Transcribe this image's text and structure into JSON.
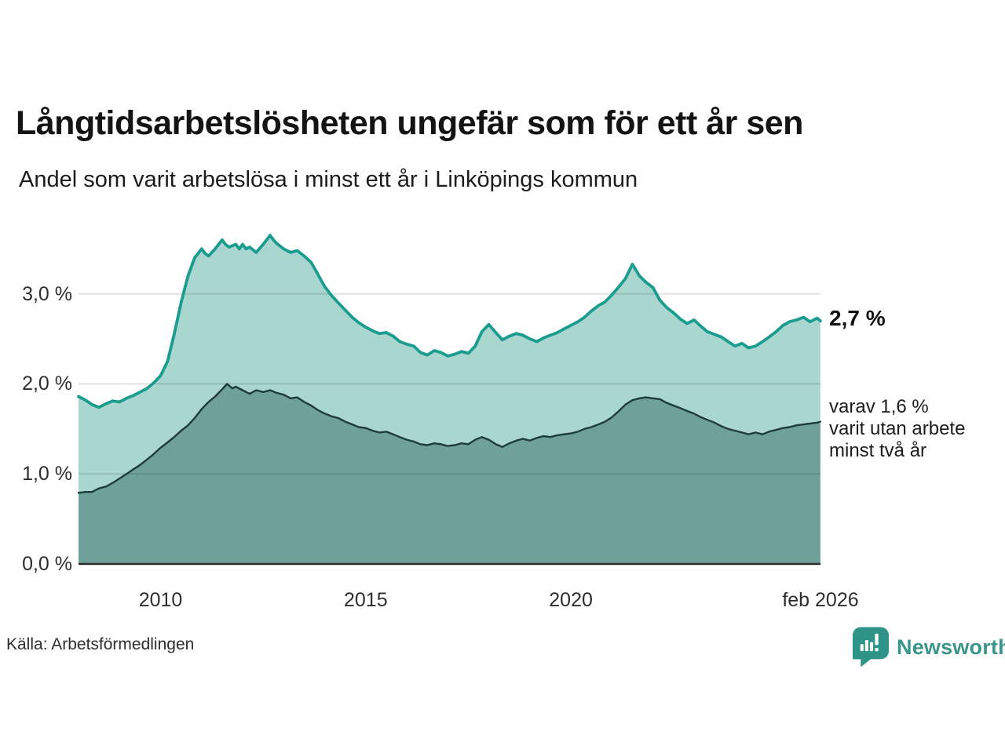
{
  "header": {
    "title": "Långtidsarbetslösheten ungefär som för ett år sen",
    "subtitle": "Andel som varit arbetslösa i minst ett år i Linköpings kommun"
  },
  "footer": {
    "source": "Källa: Arbetsförmedlingen",
    "brand": "Newsworthy"
  },
  "colors": {
    "line_one_year": "#1a9c8e",
    "fill_one_year": "#a9d6cf",
    "line_two_years": "#1e3c38",
    "fill_two_years": "#6fa09a",
    "axis": "#2b2b2b",
    "brand_teal": "#2d9487"
  },
  "chart_data": {
    "type": "area",
    "title": "Långtidsarbetslösheten ungefär som för ett år sen",
    "subtitle": "Andel som varit arbetslösa i minst ett år i Linköpings kommun",
    "source": "Källa: Arbetsförmedlingen",
    "xlim": [
      2008.0,
      2026.083
    ],
    "ylim": [
      0,
      3.72
    ],
    "grid": true,
    "yticks": [
      {
        "v": 0,
        "label": "0,0 %"
      },
      {
        "v": 1,
        "label": "1,0 %"
      },
      {
        "v": 2,
        "label": "2,0 %"
      },
      {
        "v": 3,
        "label": "3,0 %"
      }
    ],
    "xticks": [
      {
        "v": 2010,
        "label": "2010"
      },
      {
        "v": 2015,
        "label": "2015"
      },
      {
        "v": 2020,
        "label": "2020"
      },
      {
        "v": 2026.083,
        "label": "feb 2026"
      }
    ],
    "annotations": {
      "latest_total": "2,7 %",
      "detail_lines": [
        "varav 1,6 %",
        "varit utan arbete",
        "minst två år"
      ]
    },
    "series": [
      {
        "name": "Andel arbetslösa minst ett år",
        "stroke": "#1a9c8e",
        "fill": "#a9d6cf",
        "stroke_width": 3.8,
        "points": [
          [
            2008.0,
            1.86
          ],
          [
            2008.17,
            1.82
          ],
          [
            2008.33,
            1.77
          ],
          [
            2008.5,
            1.74
          ],
          [
            2008.67,
            1.78
          ],
          [
            2008.83,
            1.81
          ],
          [
            2009.0,
            1.8
          ],
          [
            2009.17,
            1.84
          ],
          [
            2009.33,
            1.87
          ],
          [
            2009.5,
            1.91
          ],
          [
            2009.67,
            1.95
          ],
          [
            2009.83,
            2.01
          ],
          [
            2010.0,
            2.09
          ],
          [
            2010.17,
            2.25
          ],
          [
            2010.33,
            2.55
          ],
          [
            2010.5,
            2.9
          ],
          [
            2010.67,
            3.2
          ],
          [
            2010.83,
            3.4
          ],
          [
            2011.0,
            3.5
          ],
          [
            2011.08,
            3.45
          ],
          [
            2011.17,
            3.42
          ],
          [
            2011.33,
            3.5
          ],
          [
            2011.5,
            3.6
          ],
          [
            2011.58,
            3.55
          ],
          [
            2011.67,
            3.52
          ],
          [
            2011.83,
            3.55
          ],
          [
            2011.92,
            3.5
          ],
          [
            2012.0,
            3.55
          ],
          [
            2012.08,
            3.5
          ],
          [
            2012.17,
            3.52
          ],
          [
            2012.33,
            3.46
          ],
          [
            2012.5,
            3.55
          ],
          [
            2012.67,
            3.65
          ],
          [
            2012.75,
            3.6
          ],
          [
            2012.83,
            3.56
          ],
          [
            2013.0,
            3.5
          ],
          [
            2013.17,
            3.46
          ],
          [
            2013.33,
            3.48
          ],
          [
            2013.5,
            3.42
          ],
          [
            2013.67,
            3.35
          ],
          [
            2013.83,
            3.22
          ],
          [
            2014.0,
            3.08
          ],
          [
            2014.17,
            2.98
          ],
          [
            2014.33,
            2.9
          ],
          [
            2014.5,
            2.82
          ],
          [
            2014.67,
            2.74
          ],
          [
            2014.83,
            2.68
          ],
          [
            2015.0,
            2.63
          ],
          [
            2015.17,
            2.59
          ],
          [
            2015.33,
            2.56
          ],
          [
            2015.5,
            2.57
          ],
          [
            2015.67,
            2.53
          ],
          [
            2015.83,
            2.47
          ],
          [
            2016.0,
            2.44
          ],
          [
            2016.17,
            2.42
          ],
          [
            2016.33,
            2.35
          ],
          [
            2016.5,
            2.32
          ],
          [
            2016.67,
            2.37
          ],
          [
            2016.83,
            2.35
          ],
          [
            2017.0,
            2.31
          ],
          [
            2017.17,
            2.33
          ],
          [
            2017.33,
            2.36
          ],
          [
            2017.5,
            2.34
          ],
          [
            2017.67,
            2.42
          ],
          [
            2017.83,
            2.58
          ],
          [
            2018.0,
            2.66
          ],
          [
            2018.17,
            2.57
          ],
          [
            2018.33,
            2.49
          ],
          [
            2018.5,
            2.53
          ],
          [
            2018.67,
            2.56
          ],
          [
            2018.83,
            2.54
          ],
          [
            2019.0,
            2.5
          ],
          [
            2019.17,
            2.47
          ],
          [
            2019.33,
            2.51
          ],
          [
            2019.5,
            2.54
          ],
          [
            2019.67,
            2.57
          ],
          [
            2019.83,
            2.61
          ],
          [
            2020.0,
            2.65
          ],
          [
            2020.17,
            2.69
          ],
          [
            2020.33,
            2.74
          ],
          [
            2020.5,
            2.81
          ],
          [
            2020.67,
            2.87
          ],
          [
            2020.83,
            2.91
          ],
          [
            2021.0,
            2.99
          ],
          [
            2021.17,
            3.08
          ],
          [
            2021.33,
            3.17
          ],
          [
            2021.5,
            3.33
          ],
          [
            2021.67,
            3.2
          ],
          [
            2021.83,
            3.13
          ],
          [
            2022.0,
            3.07
          ],
          [
            2022.17,
            2.93
          ],
          [
            2022.33,
            2.85
          ],
          [
            2022.5,
            2.79
          ],
          [
            2022.67,
            2.72
          ],
          [
            2022.83,
            2.67
          ],
          [
            2023.0,
            2.71
          ],
          [
            2023.17,
            2.64
          ],
          [
            2023.33,
            2.58
          ],
          [
            2023.5,
            2.55
          ],
          [
            2023.67,
            2.52
          ],
          [
            2023.83,
            2.47
          ],
          [
            2024.0,
            2.42
          ],
          [
            2024.17,
            2.45
          ],
          [
            2024.33,
            2.4
          ],
          [
            2024.5,
            2.42
          ],
          [
            2024.67,
            2.47
          ],
          [
            2024.83,
            2.52
          ],
          [
            2025.0,
            2.58
          ],
          [
            2025.17,
            2.65
          ],
          [
            2025.33,
            2.69
          ],
          [
            2025.5,
            2.71
          ],
          [
            2025.67,
            2.74
          ],
          [
            2025.83,
            2.69
          ],
          [
            2026.0,
            2.73
          ],
          [
            2026.08,
            2.7
          ]
        ]
      },
      {
        "name": "varav utan arbete minst två år",
        "stroke": "#1e3c38",
        "fill": "#6fa09a",
        "stroke_width": 2.4,
        "points": [
          [
            2008.0,
            0.79
          ],
          [
            2008.17,
            0.8
          ],
          [
            2008.33,
            0.8
          ],
          [
            2008.5,
            0.84
          ],
          [
            2008.67,
            0.86
          ],
          [
            2008.83,
            0.9
          ],
          [
            2009.0,
            0.95
          ],
          [
            2009.17,
            1.0
          ],
          [
            2009.33,
            1.05
          ],
          [
            2009.5,
            1.1
          ],
          [
            2009.67,
            1.16
          ],
          [
            2009.83,
            1.22
          ],
          [
            2010.0,
            1.29
          ],
          [
            2010.17,
            1.35
          ],
          [
            2010.33,
            1.41
          ],
          [
            2010.5,
            1.48
          ],
          [
            2010.67,
            1.54
          ],
          [
            2010.83,
            1.62
          ],
          [
            2011.0,
            1.72
          ],
          [
            2011.17,
            1.8
          ],
          [
            2011.33,
            1.86
          ],
          [
            2011.5,
            1.94
          ],
          [
            2011.62,
            2.0
          ],
          [
            2011.75,
            1.95
          ],
          [
            2011.83,
            1.97
          ],
          [
            2012.0,
            1.93
          ],
          [
            2012.17,
            1.89
          ],
          [
            2012.33,
            1.93
          ],
          [
            2012.5,
            1.91
          ],
          [
            2012.67,
            1.93
          ],
          [
            2012.83,
            1.9
          ],
          [
            2013.0,
            1.88
          ],
          [
            2013.17,
            1.84
          ],
          [
            2013.33,
            1.85
          ],
          [
            2013.5,
            1.8
          ],
          [
            2013.67,
            1.76
          ],
          [
            2013.83,
            1.71
          ],
          [
            2014.0,
            1.67
          ],
          [
            2014.17,
            1.64
          ],
          [
            2014.33,
            1.62
          ],
          [
            2014.5,
            1.58
          ],
          [
            2014.67,
            1.55
          ],
          [
            2014.83,
            1.52
          ],
          [
            2015.0,
            1.51
          ],
          [
            2015.17,
            1.48
          ],
          [
            2015.33,
            1.46
          ],
          [
            2015.5,
            1.47
          ],
          [
            2015.67,
            1.44
          ],
          [
            2015.83,
            1.41
          ],
          [
            2016.0,
            1.38
          ],
          [
            2016.17,
            1.36
          ],
          [
            2016.33,
            1.33
          ],
          [
            2016.5,
            1.32
          ],
          [
            2016.67,
            1.34
          ],
          [
            2016.83,
            1.33
          ],
          [
            2017.0,
            1.31
          ],
          [
            2017.17,
            1.32
          ],
          [
            2017.33,
            1.34
          ],
          [
            2017.5,
            1.33
          ],
          [
            2017.67,
            1.38
          ],
          [
            2017.83,
            1.41
          ],
          [
            2018.0,
            1.38
          ],
          [
            2018.17,
            1.33
          ],
          [
            2018.33,
            1.3
          ],
          [
            2018.5,
            1.34
          ],
          [
            2018.67,
            1.37
          ],
          [
            2018.83,
            1.39
          ],
          [
            2019.0,
            1.37
          ],
          [
            2019.17,
            1.4
          ],
          [
            2019.33,
            1.42
          ],
          [
            2019.5,
            1.41
          ],
          [
            2019.67,
            1.43
          ],
          [
            2019.83,
            1.44
          ],
          [
            2020.0,
            1.45
          ],
          [
            2020.17,
            1.47
          ],
          [
            2020.33,
            1.5
          ],
          [
            2020.5,
            1.52
          ],
          [
            2020.67,
            1.55
          ],
          [
            2020.83,
            1.58
          ],
          [
            2021.0,
            1.63
          ],
          [
            2021.17,
            1.7
          ],
          [
            2021.33,
            1.77
          ],
          [
            2021.5,
            1.82
          ],
          [
            2021.67,
            1.84
          ],
          [
            2021.83,
            1.85
          ],
          [
            2022.0,
            1.84
          ],
          [
            2022.17,
            1.83
          ],
          [
            2022.33,
            1.79
          ],
          [
            2022.5,
            1.76
          ],
          [
            2022.67,
            1.73
          ],
          [
            2022.83,
            1.7
          ],
          [
            2023.0,
            1.67
          ],
          [
            2023.17,
            1.63
          ],
          [
            2023.33,
            1.6
          ],
          [
            2023.5,
            1.57
          ],
          [
            2023.67,
            1.53
          ],
          [
            2023.83,
            1.5
          ],
          [
            2024.0,
            1.48
          ],
          [
            2024.17,
            1.46
          ],
          [
            2024.33,
            1.44
          ],
          [
            2024.5,
            1.46
          ],
          [
            2024.67,
            1.44
          ],
          [
            2024.83,
            1.47
          ],
          [
            2025.0,
            1.49
          ],
          [
            2025.17,
            1.51
          ],
          [
            2025.33,
            1.52
          ],
          [
            2025.5,
            1.54
          ],
          [
            2025.67,
            1.55
          ],
          [
            2025.83,
            1.56
          ],
          [
            2026.0,
            1.57
          ],
          [
            2026.08,
            1.58
          ]
        ]
      }
    ]
  }
}
